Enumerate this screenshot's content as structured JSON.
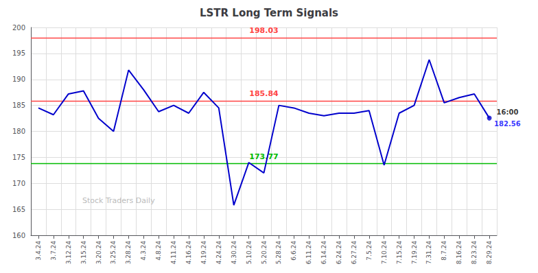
{
  "chart_data": {
    "type": "line",
    "title": "LSTR Long Term Signals",
    "categories": [
      "3.4.24",
      "3.7.24",
      "3.12.24",
      "3.15.24",
      "3.20.24",
      "3.25.24",
      "3.28.24",
      "4.3.24",
      "4.8.24",
      "4.11.24",
      "4.16.24",
      "4.19.24",
      "4.24.24",
      "4.30.24",
      "5.10.24",
      "5.20.24",
      "5.28.24",
      "6.6.24",
      "6.11.24",
      "6.14.24",
      "6.24.24",
      "6.27.24",
      "7.5.24",
      "7.10.24",
      "7.15.24",
      "7.19.24",
      "7.31.24",
      "8.7.24",
      "8.16.24",
      "8.23.24",
      "8.29.24"
    ],
    "values": [
      184.5,
      183.2,
      187.2,
      187.8,
      182.5,
      180.0,
      191.8,
      188.0,
      183.8,
      185.0,
      183.5,
      187.5,
      184.5,
      165.8,
      174.0,
      172.0,
      185.0,
      184.5,
      183.5,
      183.0,
      183.5,
      183.5,
      184.0,
      173.5,
      183.5,
      185.0,
      193.8,
      185.5,
      186.5,
      187.2,
      182.56
    ],
    "color": "#0000cc",
    "ylim": [
      160,
      200
    ],
    "yticks": [
      160,
      165,
      170,
      175,
      180,
      185,
      190,
      195,
      200
    ],
    "grid": true,
    "annotations": [
      {
        "type": "hline",
        "text": "198.03",
        "y": 198.03,
        "color": "#ff4444"
      },
      {
        "type": "hline",
        "text": "185.84",
        "y": 185.84,
        "color": "#ff4444"
      },
      {
        "type": "hline",
        "text": "173.77",
        "y": 173.77,
        "color": "#00bb00"
      },
      {
        "type": "point",
        "text": "16:00",
        "x": "8.29.24",
        "y": 182.56,
        "color": "#000000"
      },
      {
        "type": "point",
        "text": "182.56",
        "x": "8.29.24",
        "y": 182.56,
        "color": "#0000ff"
      },
      {
        "type": "watermark",
        "text": "Stock Traders Daily",
        "color": "#bbbbbb"
      }
    ]
  }
}
